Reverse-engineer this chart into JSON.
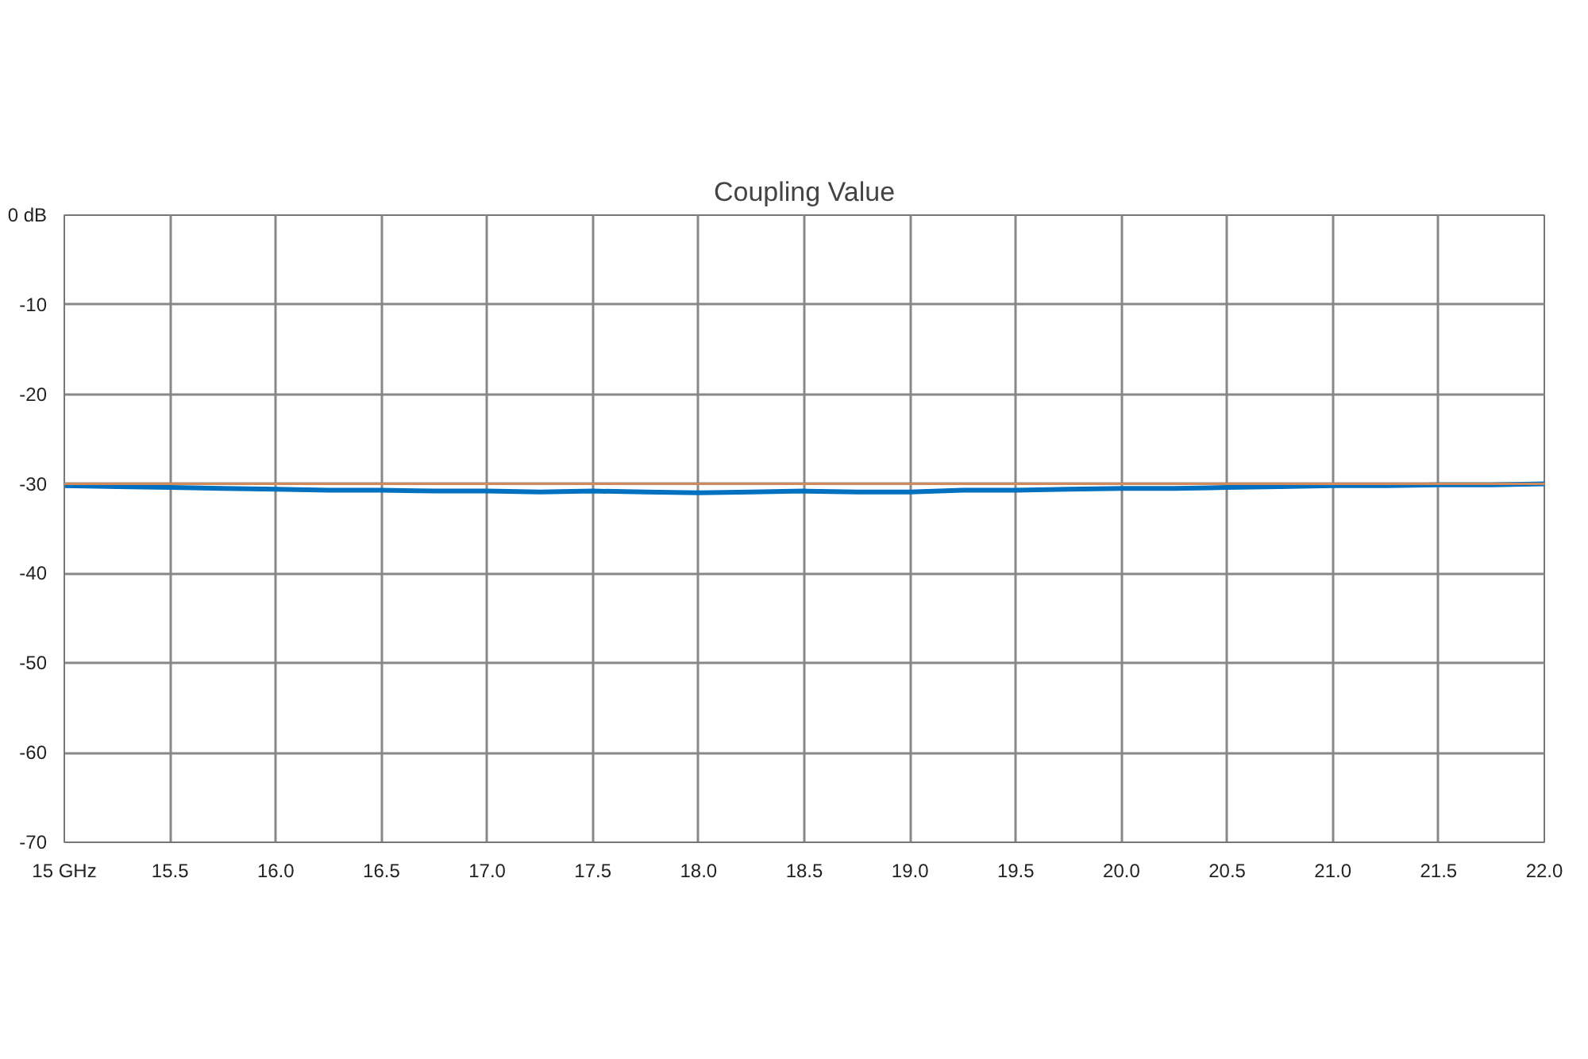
{
  "chart_data": {
    "type": "line",
    "title": "Coupling Value",
    "x": [
      15.0,
      15.25,
      15.5,
      15.75,
      16.0,
      16.25,
      16.5,
      16.75,
      17.0,
      17.25,
      17.5,
      17.75,
      18.0,
      18.25,
      18.5,
      18.75,
      19.0,
      19.25,
      19.5,
      19.75,
      20.0,
      20.25,
      20.5,
      20.75,
      21.0,
      21.25,
      21.5,
      21.75,
      22.0
    ],
    "series": [
      {
        "color": "#0070c0",
        "values": [
          -30.2,
          -30.3,
          -30.4,
          -30.5,
          -30.6,
          -30.7,
          -30.7,
          -30.8,
          -30.8,
          -30.9,
          -30.8,
          -30.9,
          -31.0,
          -30.9,
          -30.8,
          -30.9,
          -30.9,
          -30.7,
          -30.7,
          -30.6,
          -30.5,
          -30.5,
          -30.4,
          -30.3,
          -30.2,
          -30.2,
          -30.1,
          -30.1,
          -30.0
        ]
      }
    ],
    "ref_lines": [
      {
        "axis": "y",
        "value": -30,
        "color": "#d08a5c"
      }
    ],
    "xlim": [
      15,
      22
    ],
    "xticks": [
      {
        "value": 15,
        "label": "15 GHz"
      },
      15.5,
      {
        "value": 16,
        "label": "16.0"
      },
      16.5,
      {
        "value": 17,
        "label": "17.0"
      },
      17.5,
      {
        "value": 18,
        "label": "18.0"
      },
      18.5,
      {
        "value": 19,
        "label": "19.0"
      },
      19.5,
      {
        "value": 20,
        "label": "20.0"
      },
      20.5,
      {
        "value": 21,
        "label": "21.0"
      },
      21.5,
      {
        "value": 22,
        "label": "22.0"
      }
    ],
    "ylim": [
      -70,
      0
    ],
    "yticks": [
      -70,
      -60,
      -50,
      -40,
      -30,
      -20,
      -10,
      {
        "value": 0,
        "label": "0 dB"
      }
    ],
    "grid": true
  }
}
